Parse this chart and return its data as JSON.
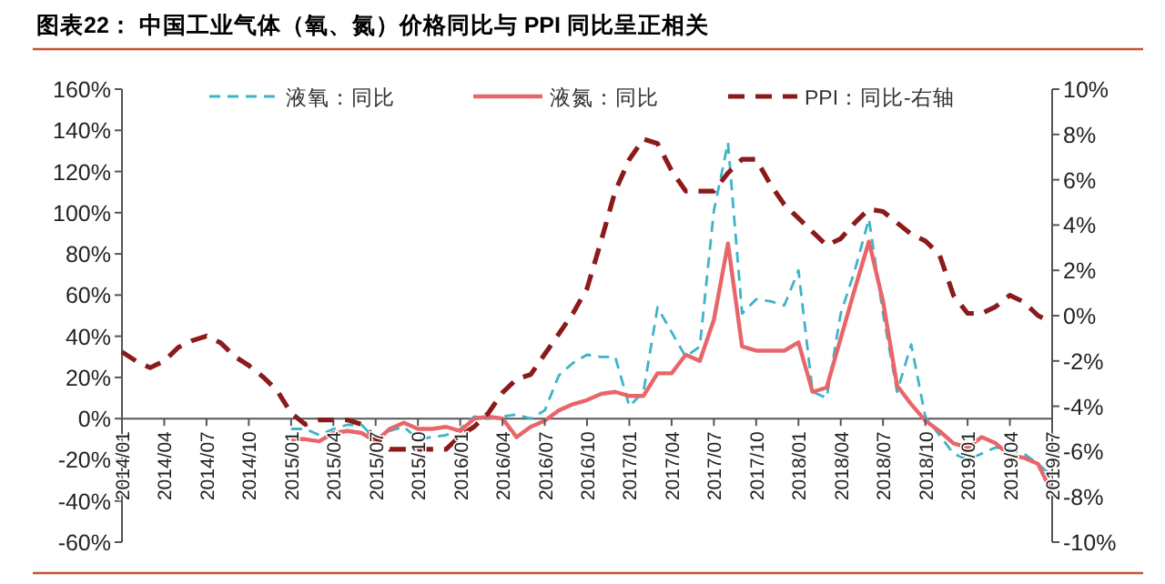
{
  "chart_data": {
    "type": "line",
    "title": "图表22：  中国工业气体（氧、氮）价格同比与 PPI 同比呈正相关",
    "legend": "top",
    "categories": [
      "2014/01",
      null,
      null,
      "2014/04",
      null,
      null,
      "2014/07",
      null,
      null,
      "2014/10",
      null,
      null,
      "2015/01",
      null,
      null,
      "2015/04",
      null,
      null,
      "2015/07",
      null,
      null,
      "2015/10",
      null,
      null,
      "2016/01",
      null,
      null,
      "2016/04",
      null,
      null,
      "2016/07",
      null,
      null,
      "2016/10",
      null,
      null,
      "2017/01",
      null,
      null,
      "2017/04",
      null,
      null,
      "2017/07",
      null,
      null,
      "2017/10",
      null,
      null,
      "2018/01",
      null,
      null,
      "2018/04",
      null,
      null,
      "2018/07",
      null,
      null,
      "2018/10",
      null,
      null,
      "2019/01",
      null,
      null,
      "2019/04",
      null,
      null,
      "2019/07"
    ],
    "ylim": [
      -60,
      160
    ],
    "yticks": [
      {
        "value": -60,
        "label": "-60%"
      },
      {
        "value": -40,
        "label": "-40%"
      },
      {
        "value": -20,
        "label": "-20%"
      },
      {
        "value": 0,
        "label": "0%"
      },
      {
        "value": 20,
        "label": "20%"
      },
      {
        "value": 40,
        "label": "40%"
      },
      {
        "value": 60,
        "label": "60%"
      },
      {
        "value": 80,
        "label": "80%"
      },
      {
        "value": 100,
        "label": "100%"
      },
      {
        "value": 120,
        "label": "120%"
      },
      {
        "value": 140,
        "label": "140%"
      },
      {
        "value": 160,
        "label": "160%"
      }
    ],
    "y2lim": [
      -10,
      10
    ],
    "y2ticks": [
      {
        "value": -10,
        "label": "-10%"
      },
      {
        "value": -8,
        "label": "-8%"
      },
      {
        "value": -6,
        "label": "-6%"
      },
      {
        "value": -4,
        "label": "-4%"
      },
      {
        "value": -2,
        "label": "-2%"
      },
      {
        "value": 0,
        "label": "0%"
      },
      {
        "value": 2,
        "label": "2%"
      },
      {
        "value": 4,
        "label": "4%"
      },
      {
        "value": 6,
        "label": "6%"
      },
      {
        "value": 8,
        "label": "8%"
      },
      {
        "value": 10,
        "label": "10%"
      }
    ],
    "series": [
      {
        "name": "液氧：同比",
        "color": "#3cb4c8",
        "line_style": "dashed",
        "values": [
          null,
          null,
          null,
          null,
          null,
          null,
          null,
          null,
          null,
          null,
          null,
          null,
          -5,
          -5,
          -8,
          -5,
          -3,
          -3,
          -10,
          -6,
          -4,
          -10,
          -9,
          -8,
          -5,
          1,
          0,
          1,
          2,
          0,
          4,
          21,
          27,
          31,
          30,
          30,
          6,
          13,
          54,
          42,
          30,
          35,
          101,
          134,
          51,
          58,
          57,
          55,
          72,
          13,
          10,
          51,
          72,
          97,
          51,
          13,
          36,
          1,
          -8,
          -17,
          -20,
          -17,
          -14,
          -15,
          -17,
          -22,
          -28
        ]
      },
      {
        "name": "液氮：同比",
        "color": "#e8666a",
        "line_style": "solid",
        "values": [
          null,
          null,
          null,
          null,
          null,
          null,
          null,
          null,
          null,
          null,
          null,
          null,
          -10,
          -10,
          -11,
          -7,
          -6,
          -7,
          -11,
          -5,
          -2,
          -5,
          -5,
          -4,
          -6,
          0,
          1,
          0,
          -9,
          -4,
          -1,
          4,
          7,
          9,
          12,
          13,
          11,
          11,
          22,
          22,
          31,
          28,
          48,
          85,
          35,
          33,
          33,
          33,
          37,
          13,
          15,
          39,
          63,
          86,
          57,
          16,
          7,
          -1,
          -6,
          -12,
          -14,
          -9,
          -12,
          -18,
          -19,
          -22,
          -36
        ]
      },
      {
        "name": "PPI：同比-右轴",
        "color": "#8b1a1a",
        "line_style": "dashed",
        "axis": "y2",
        "values": [
          -1.6,
          -2.0,
          -2.3,
          -2.0,
          -1.4,
          -1.1,
          -0.9,
          -1.2,
          -1.8,
          -2.2,
          -2.7,
          -3.3,
          -4.3,
          -4.8,
          -4.6,
          -4.6,
          -4.6,
          -4.8,
          -5.4,
          -5.9,
          -5.9,
          -5.9,
          -5.9,
          -5.9,
          -5.3,
          -4.9,
          -4.3,
          -3.4,
          -2.8,
          -2.6,
          -1.7,
          -0.8,
          0.1,
          1.2,
          3.3,
          5.5,
          6.9,
          7.8,
          7.6,
          6.4,
          5.5,
          5.5,
          5.5,
          6.3,
          6.9,
          6.9,
          5.8,
          4.9,
          4.3,
          3.7,
          3.1,
          3.4,
          4.1,
          4.7,
          4.6,
          4.1,
          3.6,
          3.3,
          2.7,
          0.9,
          0.1,
          0.1,
          0.4,
          0.9,
          0.6,
          0.0,
          -0.3
        ]
      }
    ]
  }
}
